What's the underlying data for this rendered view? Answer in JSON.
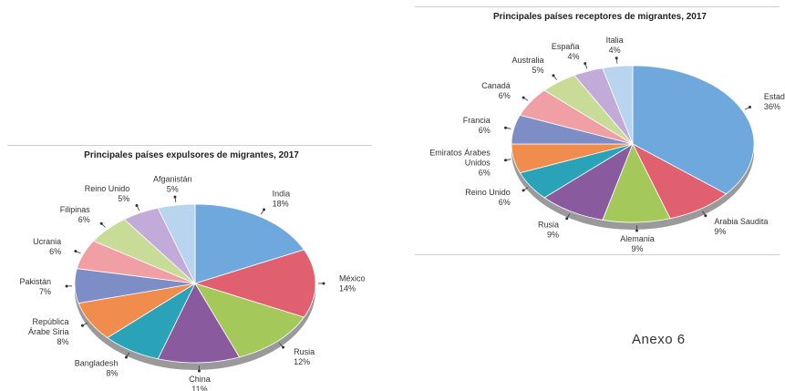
{
  "annex_label": "Anexo 6",
  "chart_data": [
    {
      "type": "pie",
      "title": "Principales países expulsores de migrantes, 2017",
      "categories": [
        "India",
        "México",
        "Rusia",
        "China",
        "Bangladesh",
        "República Árabe Siria",
        "Pakistán",
        "Ucrania",
        "Filipinas",
        "Reino Unido",
        "Afganistán"
      ],
      "labels": [
        [
          "India"
        ],
        [
          "México"
        ],
        [
          "Rusia"
        ],
        [
          "China"
        ],
        [
          "Bangladesh"
        ],
        [
          "República",
          "Árabe Siria"
        ],
        [
          "Pakistán"
        ],
        [
          "Ucrania"
        ],
        [
          "Filipinas"
        ],
        [
          "Reino Unido"
        ],
        [
          "Afganistán"
        ]
      ],
      "values": [
        18,
        14,
        12,
        11,
        8,
        8,
        7,
        6,
        6,
        5,
        5
      ],
      "value_labels": [
        "18%",
        "14%",
        "12%",
        "11%",
        "8%",
        "8%",
        "7%",
        "6%",
        "6%",
        "5%",
        "5%"
      ],
      "colors": [
        "#6fa8dc",
        "#e06070",
        "#a4c85a",
        "#8a5a9e",
        "#2aa2b8",
        "#f08c4e",
        "#7d8ec6",
        "#f0a0a4",
        "#c8dc98",
        "#c2abd8",
        "#b8d4ee"
      ],
      "legend": "none"
    },
    {
      "type": "pie",
      "title": "Principales países receptores de migrantes, 2017",
      "categories": [
        "Estados Unidos",
        "Arabia Saudita",
        "Alemania",
        "Rusia",
        "Reino Unido",
        "Emiratos Árabes Unidos",
        "Francia",
        "Canadá",
        "Australia",
        "España",
        "Italia"
      ],
      "labels": [
        [
          "Estados Unidos"
        ],
        [
          "Arabia Saudita"
        ],
        [
          "Alemania"
        ],
        [
          "Rusia"
        ],
        [
          "Reino Unido"
        ],
        [
          "Emiratos Árabes",
          "Unidos"
        ],
        [
          "Francia"
        ],
        [
          "Canadá"
        ],
        [
          "Australia"
        ],
        [
          "España"
        ],
        [
          "Italia"
        ]
      ],
      "values": [
        36,
        9,
        9,
        9,
        6,
        6,
        6,
        6,
        5,
        4,
        4
      ],
      "value_labels": [
        "36%",
        "9%",
        "9%",
        "9%",
        "6%",
        "6%",
        "6%",
        "6%",
        "5%",
        "4%",
        "4%"
      ],
      "colors": [
        "#6fa8dc",
        "#e06070",
        "#a4c85a",
        "#8a5a9e",
        "#2aa2b8",
        "#f08c4e",
        "#7d8ec6",
        "#f0a0a4",
        "#c8dc98",
        "#c2abd8",
        "#b8d4ee"
      ],
      "legend": "none"
    }
  ]
}
